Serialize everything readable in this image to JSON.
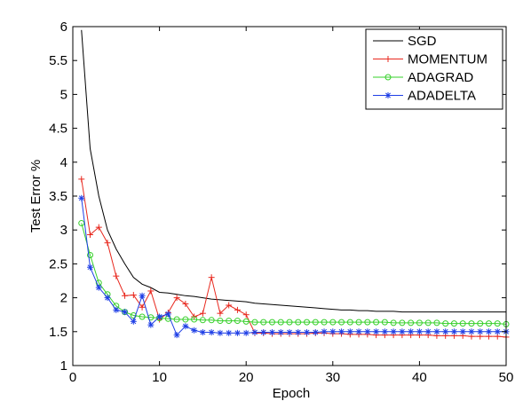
{
  "chart_data": {
    "type": "line",
    "title": "",
    "xlabel": "Epoch",
    "ylabel": "Test Error %",
    "xlim": [
      0,
      50
    ],
    "ylim": [
      1,
      6
    ],
    "xticks": [
      "0",
      "10",
      "20",
      "30",
      "40",
      "50"
    ],
    "yticks": [
      "1",
      "1.5",
      "2",
      "2.5",
      "3",
      "3.5",
      "4",
      "4.5",
      "5",
      "5.5",
      "6"
    ],
    "grid": false,
    "legend_position": "top-right",
    "x": [
      1,
      2,
      3,
      4,
      5,
      6,
      7,
      8,
      9,
      10,
      11,
      12,
      13,
      14,
      15,
      16,
      17,
      18,
      19,
      20,
      21,
      22,
      23,
      24,
      25,
      26,
      27,
      28,
      29,
      30,
      31,
      32,
      33,
      34,
      35,
      36,
      37,
      38,
      39,
      40,
      41,
      42,
      43,
      44,
      45,
      46,
      47,
      48,
      49,
      50
    ],
    "series": [
      {
        "name": "SGD",
        "color": "#000000",
        "marker": "none",
        "values": [
          5.95,
          4.2,
          3.5,
          3.0,
          2.72,
          2.5,
          2.3,
          2.2,
          2.15,
          2.08,
          2.07,
          2.05,
          2.03,
          2.02,
          2.0,
          1.98,
          1.97,
          1.96,
          1.95,
          1.94,
          1.92,
          1.91,
          1.9,
          1.89,
          1.88,
          1.87,
          1.86,
          1.85,
          1.84,
          1.83,
          1.82,
          1.82,
          1.81,
          1.81,
          1.8,
          1.8,
          1.8,
          1.79,
          1.79,
          1.79,
          1.79,
          1.79,
          1.79,
          1.79,
          1.79,
          1.79,
          1.79,
          1.79,
          1.79,
          1.79
        ]
      },
      {
        "name": "MOMENTUM",
        "color": "#e8281e",
        "marker": "plus",
        "values": [
          3.75,
          2.93,
          3.04,
          2.81,
          2.32,
          2.03,
          2.04,
          1.86,
          2.1,
          1.68,
          1.78,
          2.0,
          1.91,
          1.72,
          1.77,
          2.3,
          1.77,
          1.89,
          1.82,
          1.75,
          1.48,
          1.48,
          1.47,
          1.47,
          1.47,
          1.47,
          1.47,
          1.48,
          1.48,
          1.47,
          1.47,
          1.46,
          1.46,
          1.46,
          1.45,
          1.45,
          1.45,
          1.45,
          1.45,
          1.45,
          1.45,
          1.44,
          1.44,
          1.44,
          1.44,
          1.43,
          1.43,
          1.43,
          1.43,
          1.42
        ]
      },
      {
        "name": "ADAGRAD",
        "color": "#36d02a",
        "marker": "circle",
        "values": [
          3.1,
          2.63,
          2.22,
          2.05,
          1.88,
          1.79,
          1.74,
          1.72,
          1.71,
          1.7,
          1.69,
          1.68,
          1.68,
          1.68,
          1.67,
          1.67,
          1.66,
          1.66,
          1.66,
          1.65,
          1.64,
          1.64,
          1.64,
          1.64,
          1.64,
          1.64,
          1.64,
          1.64,
          1.64,
          1.64,
          1.64,
          1.64,
          1.64,
          1.64,
          1.64,
          1.64,
          1.63,
          1.63,
          1.63,
          1.63,
          1.63,
          1.63,
          1.62,
          1.62,
          1.62,
          1.62,
          1.62,
          1.62,
          1.62,
          1.61
        ]
      },
      {
        "name": "ADADELTA",
        "color": "#1f3fe6",
        "marker": "star",
        "values": [
          3.47,
          2.45,
          2.15,
          2.0,
          1.82,
          1.79,
          1.65,
          2.03,
          1.6,
          1.72,
          1.76,
          1.45,
          1.58,
          1.52,
          1.49,
          1.49,
          1.48,
          1.48,
          1.48,
          1.48,
          1.49,
          1.49,
          1.49,
          1.49,
          1.49,
          1.49,
          1.49,
          1.49,
          1.5,
          1.5,
          1.5,
          1.5,
          1.5,
          1.5,
          1.5,
          1.5,
          1.5,
          1.5,
          1.5,
          1.5,
          1.5,
          1.5,
          1.5,
          1.5,
          1.5,
          1.5,
          1.5,
          1.5,
          1.5,
          1.5
        ]
      }
    ]
  }
}
